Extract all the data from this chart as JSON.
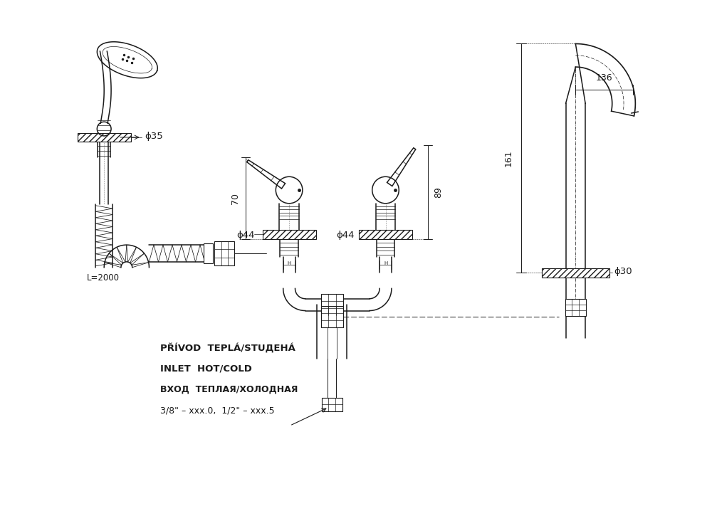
{
  "bg_color": "#ffffff",
  "line_color": "#1a1a1a",
  "figsize": [
    10.0,
    7.11
  ],
  "dpi": 100,
  "annotations": {
    "d35": "ϕ35",
    "d44_left": "ϕ44",
    "d44_right": "ϕ44",
    "d30": "ϕ30",
    "h70": "70",
    "h89": "89",
    "h161": "161",
    "w136": "136",
    "L2000": "L=2000",
    "line1": "PŘÍVOD  TEPLÁ/STUДЕНÁ",
    "line2": "INLET  HOT/COLD",
    "line3": "ВХОД  ТЕПЛАЯ/ХОЛОДНАЯ",
    "line4": "3/8\" – xxx.0,  1/2\" – xxx.5"
  }
}
